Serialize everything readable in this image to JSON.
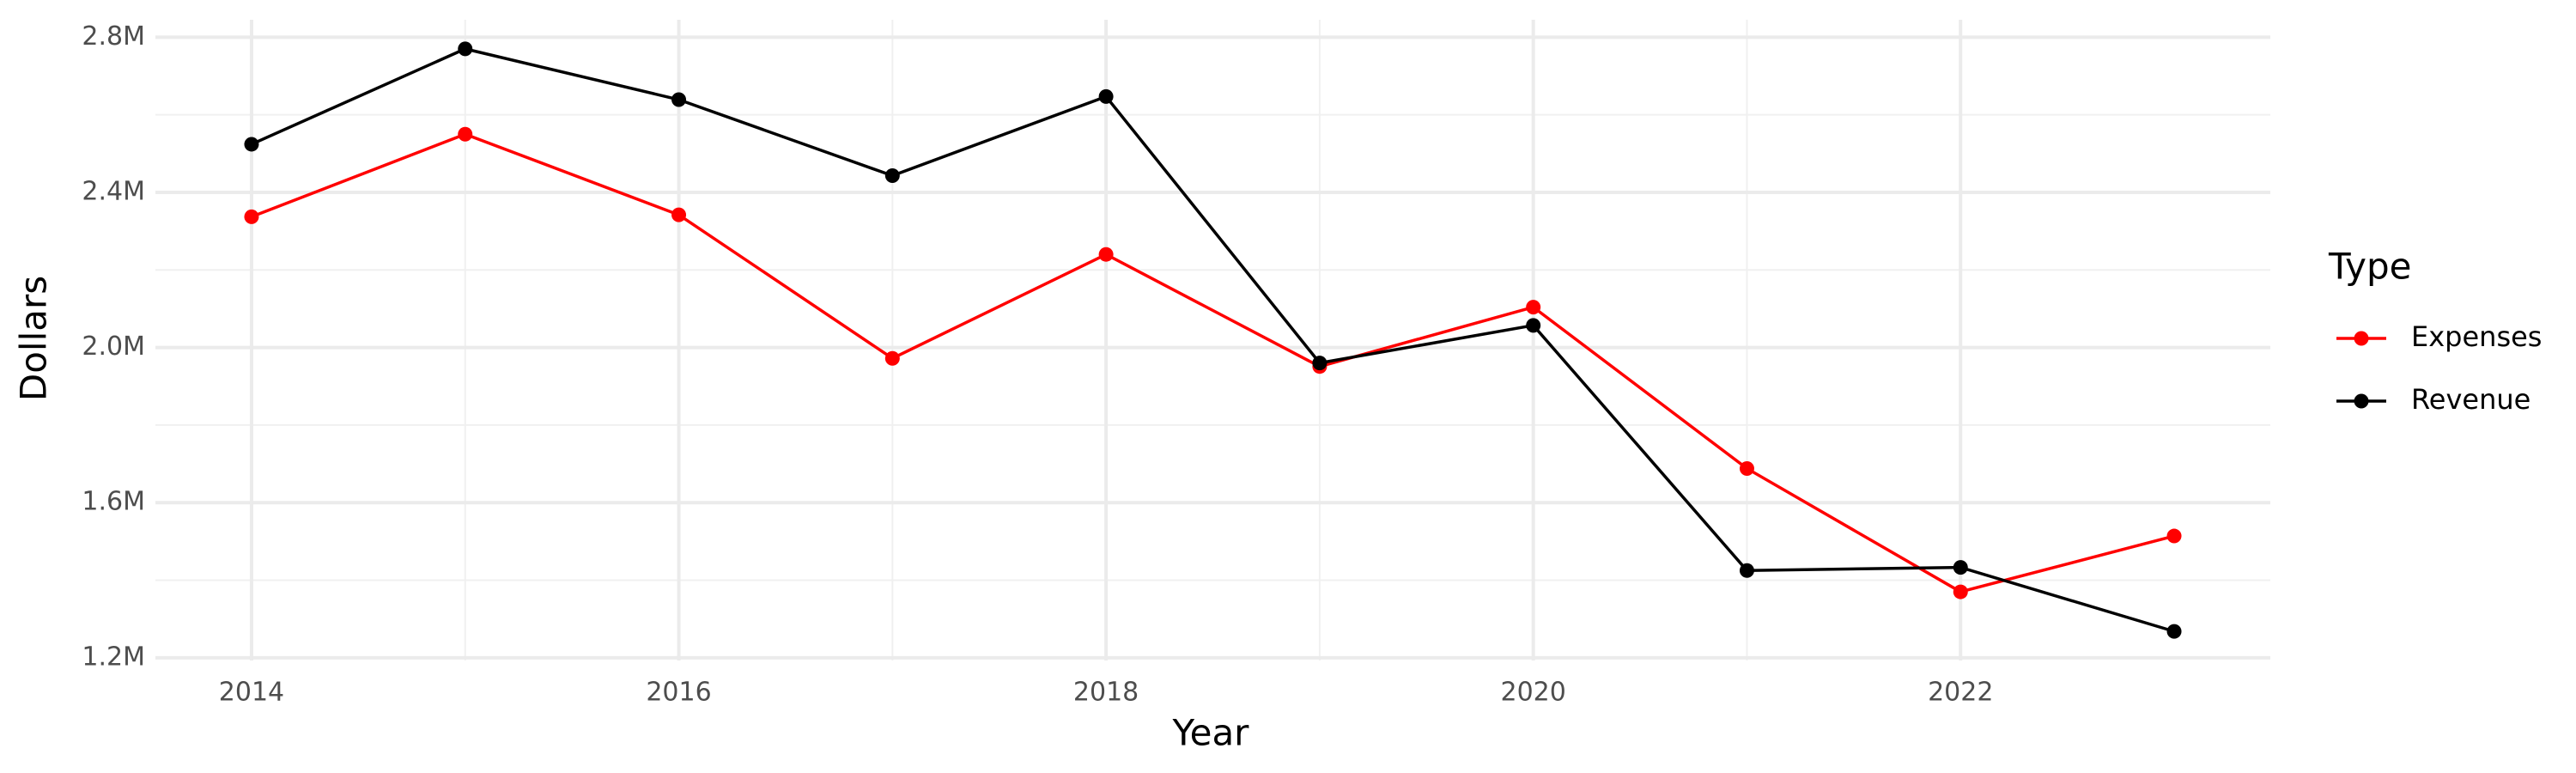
{
  "chart_data": {
    "type": "line",
    "x_label": "Year",
    "y_label": "Dollars",
    "legend_title": "Type",
    "x": [
      2014,
      2015,
      2016,
      2017,
      2018,
      2019,
      2020,
      2021,
      2022,
      2023
    ],
    "series": [
      {
        "name": "Expenses",
        "color": "#ff0000",
        "values": [
          2337000,
          2550000,
          2342000,
          1972000,
          2240000,
          1951000,
          2104000,
          1688000,
          1370000,
          1514000
        ]
      },
      {
        "name": "Revenue",
        "color": "#000000",
        "values": [
          2524000,
          2770000,
          2639000,
          2443000,
          2647000,
          1960000,
          2057000,
          1425000,
          1433000,
          1268000
        ]
      }
    ],
    "xlim": [
      2013.55,
      2023.45
    ],
    "xticks": [
      2014,
      2016,
      2018,
      2020,
      2022
    ],
    "ylim": [
      1193000,
      2845000
    ],
    "yticks": [
      {
        "value": 1200000,
        "label": "1.2M"
      },
      {
        "value": 1600000,
        "label": "1.6M"
      },
      {
        "value": 2000000,
        "label": "2.0M"
      },
      {
        "value": 2400000,
        "label": "2.4M"
      },
      {
        "value": 2800000,
        "label": "2.8M"
      }
    ],
    "grid": true,
    "legend": "right"
  }
}
